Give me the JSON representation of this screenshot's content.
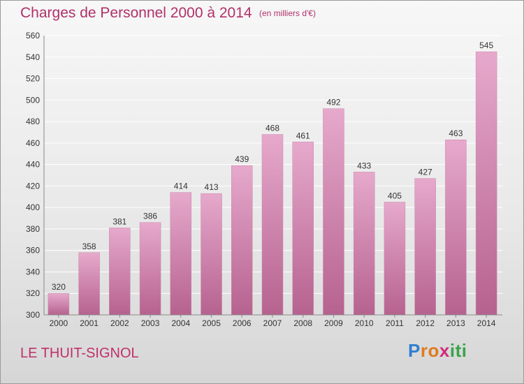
{
  "header": {
    "title": "Charges de Personnel 2000 à 2014",
    "subtitle": "(en milliers d'€)"
  },
  "footer": {
    "commune": "LE THUIT-SIGNOL",
    "logo_letters": [
      "P",
      "r",
      "o",
      "x",
      "i",
      "t",
      "i"
    ]
  },
  "colors": {
    "bar_top": "#e6a9cc",
    "bar_bottom": "#b6628f",
    "title": "#b0306a",
    "grid": "#ffffff",
    "axis_text": "#333333",
    "logo": [
      "#2f7fcf",
      "#e07a1f",
      "#e07a1f",
      "#d12c7a",
      "#3aa34a",
      "#3aa34a",
      "#3aa34a"
    ]
  },
  "chart_data": {
    "type": "bar",
    "title": "Charges de Personnel 2000 à 2014",
    "subtitle": "(en milliers d'€)",
    "categories": [
      "2000",
      "2001",
      "2002",
      "2003",
      "2004",
      "2005",
      "2006",
      "2007",
      "2008",
      "2009",
      "2010",
      "2011",
      "2012",
      "2013",
      "2014"
    ],
    "values": [
      320,
      358,
      381,
      386,
      414,
      413,
      439,
      468,
      461,
      492,
      433,
      405,
      427,
      463,
      545
    ],
    "ylim": [
      300,
      560
    ],
    "yticks": [
      300,
      320,
      340,
      360,
      380,
      400,
      420,
      440,
      460,
      480,
      500,
      520,
      540,
      560
    ],
    "grid": true,
    "legend": "none",
    "xlabel": "",
    "ylabel": ""
  }
}
